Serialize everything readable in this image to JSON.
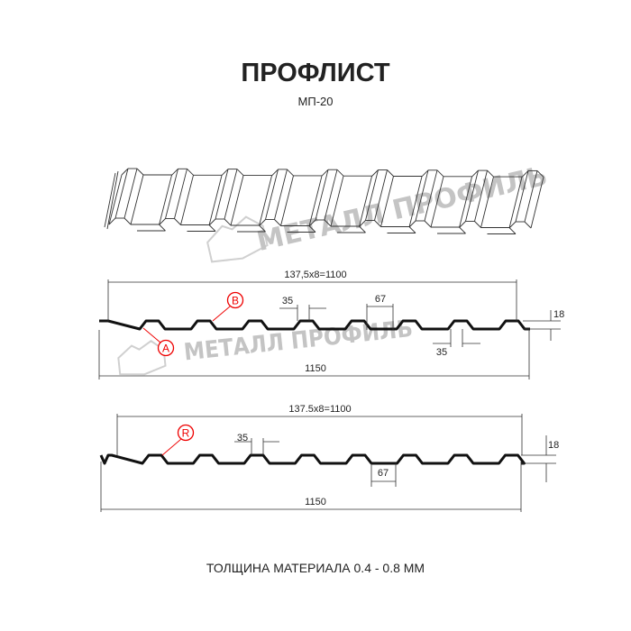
{
  "title": "ПРОФЛИСТ",
  "subtitle": "МП-20",
  "footer": "ТОЛЩИНА МАТЕРИАЛА 0.4 - 0.8 ММ",
  "watermark": "МЕТАЛЛ ПРОФИЛЬ",
  "colors": {
    "line": "#111111",
    "marker": "#e00000",
    "watermark": "#c4c4c4"
  },
  "profile_top": {
    "pitch_label": "137,5x8=1100",
    "width_label": "1150",
    "top_width": "35",
    "bottom_width": "35",
    "valley_width": "67",
    "height": "18",
    "ribs": 8,
    "markers": [
      "B",
      "A"
    ]
  },
  "profile_bottom": {
    "pitch_label": "137.5x8=1100",
    "width_label": "1150",
    "top_width": "35",
    "valley_width": "67",
    "height": "18",
    "ribs": 8,
    "markers": [
      "R"
    ]
  }
}
